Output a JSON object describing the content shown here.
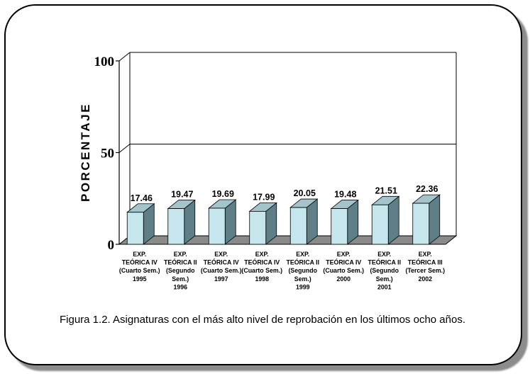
{
  "chart_data": {
    "type": "bar",
    "ylabel": "PORCENTAJE",
    "ylim": [
      0,
      100
    ],
    "y_ticks": [
      "0",
      "50",
      "100"
    ],
    "grid": true,
    "bar_style": "3d",
    "colors": {
      "bar_front": "#c5e6ec",
      "bar_top": "#a3c4cb",
      "bar_side": "#5e7f87",
      "floor": "#8a8a8a"
    },
    "categories": [
      [
        "EXP.",
        "TEÓRICA IV",
        "(Cuarto Sem.)",
        "1995"
      ],
      [
        "EXP.",
        "TEÓRICA II",
        "(Segundo",
        "Sem.)",
        "1996"
      ],
      [
        "EXP.",
        "TEÓRICA IV",
        "(Cuarto Sem.)",
        "1997"
      ],
      [
        "EXP.",
        "TEÓRICA IV",
        "(Cuarto Sem.)",
        "1998"
      ],
      [
        "EXP.",
        "TEÓRICA II",
        "(Segundo",
        "Sem.)",
        "1999"
      ],
      [
        "EXP.",
        "TEÓRICA IV",
        "(Cuarto Sem.)",
        "2000"
      ],
      [
        "EXP.",
        "TEÓRICA II",
        "(Segundo",
        "Sem.)",
        "2001"
      ],
      [
        "EXP.",
        "TEÓRICA III",
        "(Tercer Sem.)",
        "2002"
      ]
    ],
    "values": [
      17.46,
      19.47,
      19.69,
      17.99,
      20.05,
      19.48,
      21.51,
      22.36
    ],
    "value_labels": [
      "17.46",
      "19.47",
      "19.69",
      "17.99",
      "20.05",
      "19.48",
      "21.51",
      "22.36"
    ]
  },
  "caption": "Figura 1.2. Asignaturas con el más alto nivel de reprobación en los últimos ocho años."
}
